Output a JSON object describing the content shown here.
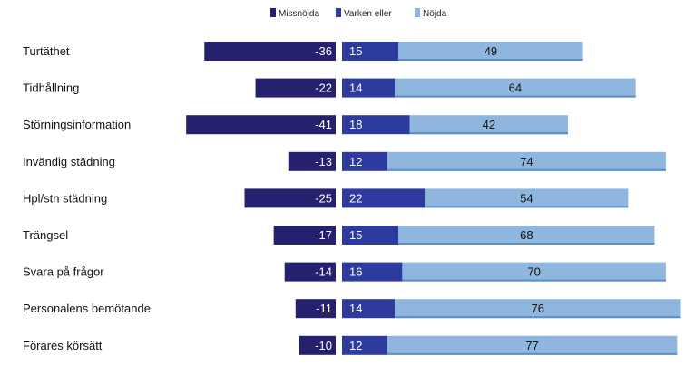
{
  "chart_data": {
    "type": "bar",
    "title": "",
    "legend": {
      "placement": "top-center",
      "entries": [
        "Missnöjda",
        "Varken eller",
        "Nöjda"
      ]
    },
    "colors": {
      "missnojda": "#25216e",
      "varken": "#2e3b9e",
      "nojda": "#8fb6de",
      "nojda_edge": "#5c8ec4"
    },
    "categories": [
      "Turtäthet",
      "Tidhållning",
      "Störningsinformation",
      "Invändig städning",
      "Hpl/stn städning",
      "Trängsel",
      "Svara på frågor",
      "Personalens bemötande",
      "Förares körsätt"
    ],
    "series": [
      {
        "name": "Missnöjda",
        "values": [
          -36,
          -22,
          -41,
          -13,
          -25,
          -17,
          -14,
          -11,
          -10
        ]
      },
      {
        "name": "Varken eller",
        "values": [
          15,
          14,
          18,
          12,
          22,
          15,
          16,
          14,
          12
        ]
      },
      {
        "name": "Nöjda",
        "values": [
          49,
          64,
          42,
          74,
          54,
          68,
          70,
          76,
          77
        ]
      }
    ]
  }
}
